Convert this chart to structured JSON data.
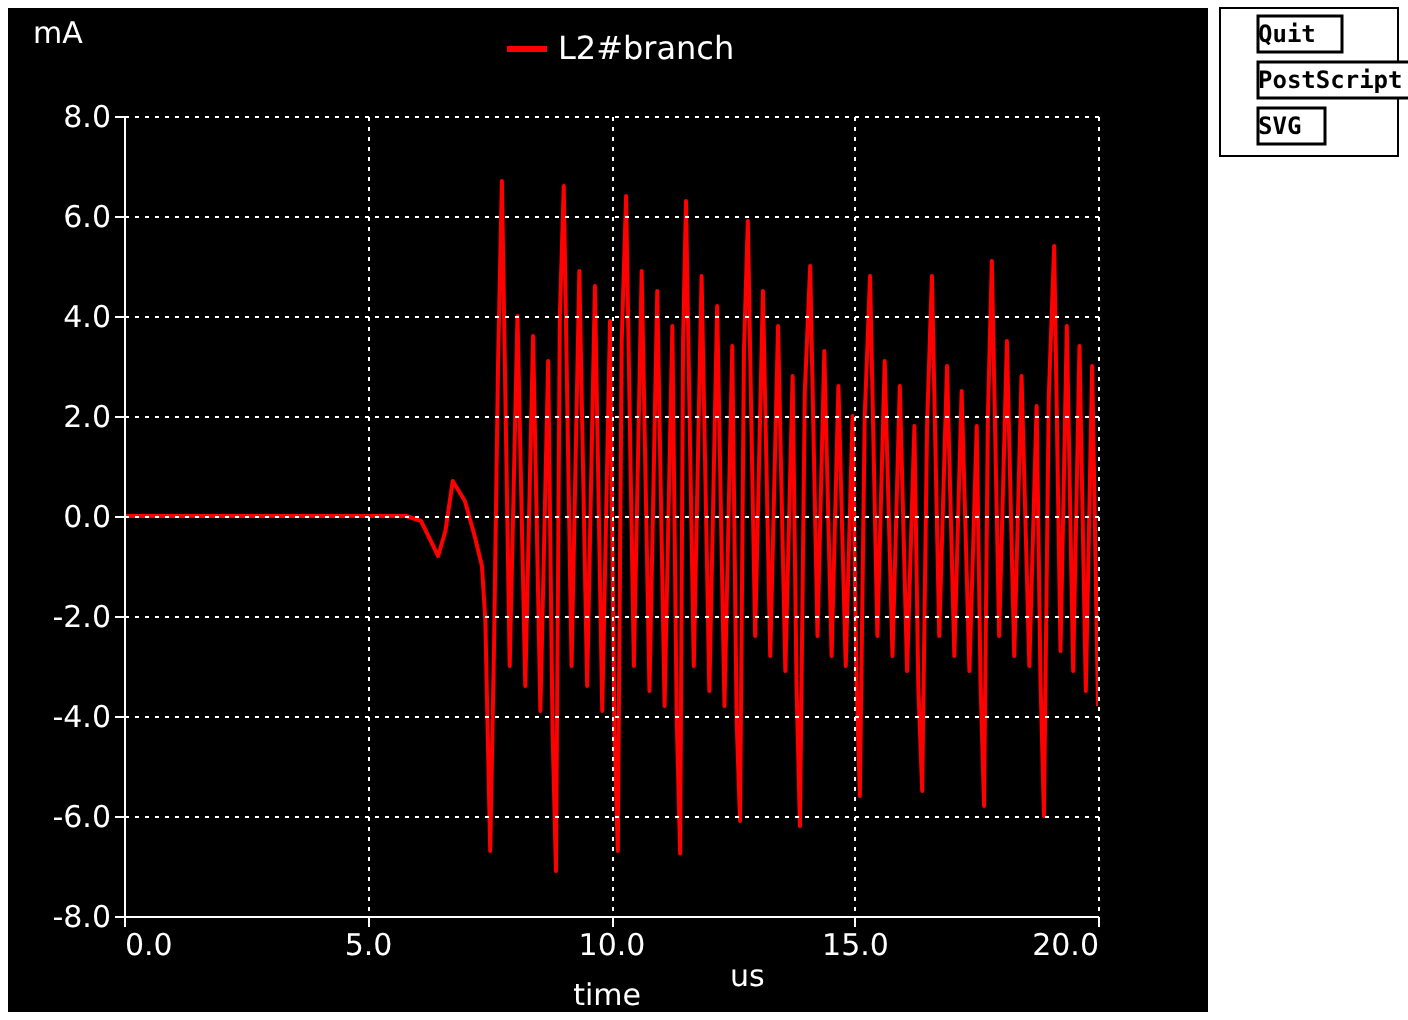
{
  "chart_data": {
    "type": "line",
    "xlabel": "time",
    "ylabel": "mA",
    "annotations": [
      "us",
      "Quit",
      "PostScript",
      "SVG"
    ],
    "xlim": [
      0,
      20
    ],
    "ylim": [
      -8,
      8
    ],
    "xticks": [
      {
        "value": 0,
        "label": "0.0"
      },
      {
        "value": 5,
        "label": "5.0"
      },
      {
        "value": 10,
        "label": "10.0"
      },
      {
        "value": 15,
        "label": "15.0"
      },
      {
        "value": 20,
        "label": "20.0"
      }
    ],
    "yticks": [
      {
        "value": -8,
        "label": "-8.0"
      },
      {
        "value": -6,
        "label": "-6.0"
      },
      {
        "value": -4,
        "label": "-4.0"
      },
      {
        "value": -2,
        "label": "-2.0"
      },
      {
        "value": 0,
        "label": "0.0"
      },
      {
        "value": 2,
        "label": "2.0"
      },
      {
        "value": 4,
        "label": "4.0"
      },
      {
        "value": 6,
        "label": "6.0"
      },
      {
        "value": 8,
        "label": "8.0"
      }
    ],
    "grid": true,
    "legend": "top",
    "marker": "none",
    "line_style": "solid",
    "series": [
      {
        "name": "L2#branch",
        "color": "#ff0000",
        "x": [
          0,
          5.8,
          6.1,
          6.45,
          6.6,
          6.75,
          7.0,
          7.2,
          7.35,
          7.42,
          7.52,
          7.6,
          7.68,
          7.76,
          7.92,
          8.08,
          8.24,
          8.4,
          8.55,
          8.71,
          8.8,
          8.87,
          8.95,
          9.03,
          9.19,
          9.35,
          9.51,
          9.67,
          9.82,
          9.98,
          10.07,
          10.14,
          10.22,
          10.31,
          10.47,
          10.63,
          10.79,
          10.95,
          11.1,
          11.26,
          11.35,
          11.42,
          11.48,
          11.54,
          11.7,
          11.86,
          12.02,
          12.18,
          12.33,
          12.49,
          12.58,
          12.65,
          12.73,
          12.81,
          12.96,
          13.12,
          13.27,
          13.43,
          13.58,
          13.73,
          13.81,
          13.88,
          13.98,
          14.09,
          14.24,
          14.38,
          14.53,
          14.67,
          14.82,
          14.96,
          15.04,
          15.11,
          15.21,
          15.32,
          15.47,
          15.62,
          15.78,
          15.93,
          16.08,
          16.23,
          16.31,
          16.39,
          16.49,
          16.59,
          16.74,
          16.9,
          17.05,
          17.2,
          17.36,
          17.51,
          17.59,
          17.66,
          17.74,
          17.82,
          17.97,
          18.13,
          18.28,
          18.43,
          18.59,
          18.74,
          18.82,
          18.89,
          18.99,
          19.1,
          19.23,
          19.36,
          19.49,
          19.62,
          19.75,
          19.88,
          20.0
        ],
        "values": [
          0,
          0,
          -0.1,
          -0.8,
          -0.3,
          0.7,
          0.3,
          -0.4,
          -1.0,
          -2.1,
          -6.7,
          -2.5,
          3.0,
          6.7,
          -3.0,
          4.0,
          -3.4,
          3.6,
          -3.9,
          3.1,
          -4.3,
          -7.1,
          4.0,
          6.6,
          -3.0,
          4.9,
          -3.4,
          4.6,
          -3.9,
          3.9,
          -4.3,
          -6.7,
          3.5,
          6.4,
          -3.0,
          4.9,
          -3.5,
          4.5,
          -3.8,
          3.8,
          -4.1,
          -6.75,
          3.5,
          6.3,
          -3.0,
          4.8,
          -3.5,
          4.2,
          -3.8,
          3.4,
          -4.1,
          -6.1,
          3.3,
          5.9,
          -2.4,
          4.5,
          -2.8,
          3.8,
          -3.1,
          2.8,
          -3.4,
          -6.2,
          2.5,
          5.0,
          -2.4,
          3.3,
          -2.8,
          2.6,
          -3.0,
          2.0,
          -3.2,
          -5.6,
          2.0,
          4.8,
          -2.4,
          3.1,
          -2.8,
          2.6,
          -3.1,
          1.8,
          -3.4,
          -5.5,
          1.8,
          4.8,
          -2.4,
          3.0,
          -2.8,
          2.5,
          -3.1,
          1.8,
          -3.4,
          -5.8,
          2.0,
          5.1,
          -2.4,
          3.5,
          -2.8,
          2.8,
          -3.0,
          2.2,
          -3.3,
          -6.0,
          2.4,
          5.4,
          -2.7,
          3.8,
          -3.1,
          3.4,
          -3.5,
          3.0,
          -3.8
        ]
      }
    ]
  }
}
